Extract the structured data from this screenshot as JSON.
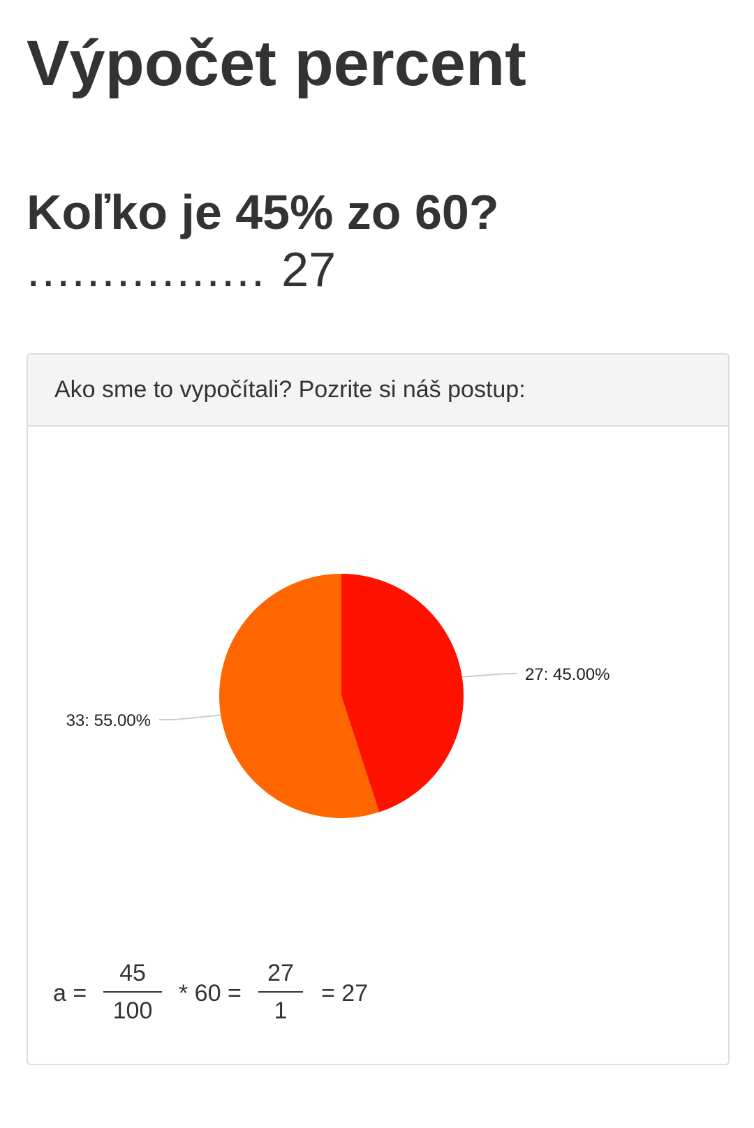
{
  "page": {
    "title": "Výpočet percent",
    "question": "Koľko je 45% zo 60?",
    "answer_dots": "................",
    "answer_value": "27"
  },
  "card": {
    "header_text": "Ako sme to vypočítali? Pozrite si náš postup:"
  },
  "chart_data": {
    "type": "pie",
    "slices": [
      {
        "value": 27,
        "label": "27: 45.00%",
        "percent": 45.0,
        "color": "#ff1100"
      },
      {
        "value": 33,
        "label": "33: 55.00%",
        "percent": 55.0,
        "color": "#ff6600"
      }
    ],
    "legend": "none"
  },
  "formula": {
    "lhs": "a =",
    "frac1_num": "45",
    "frac1_den": "100",
    "times": "* 60 =",
    "frac2_num": "27",
    "frac2_den": "1",
    "result": "= 27"
  },
  "colors": {
    "text": "#333333",
    "header_bg": "#f4f4f4",
    "border": "#dddddd",
    "slice_27": "#ff1100",
    "slice_33": "#ff6600"
  }
}
